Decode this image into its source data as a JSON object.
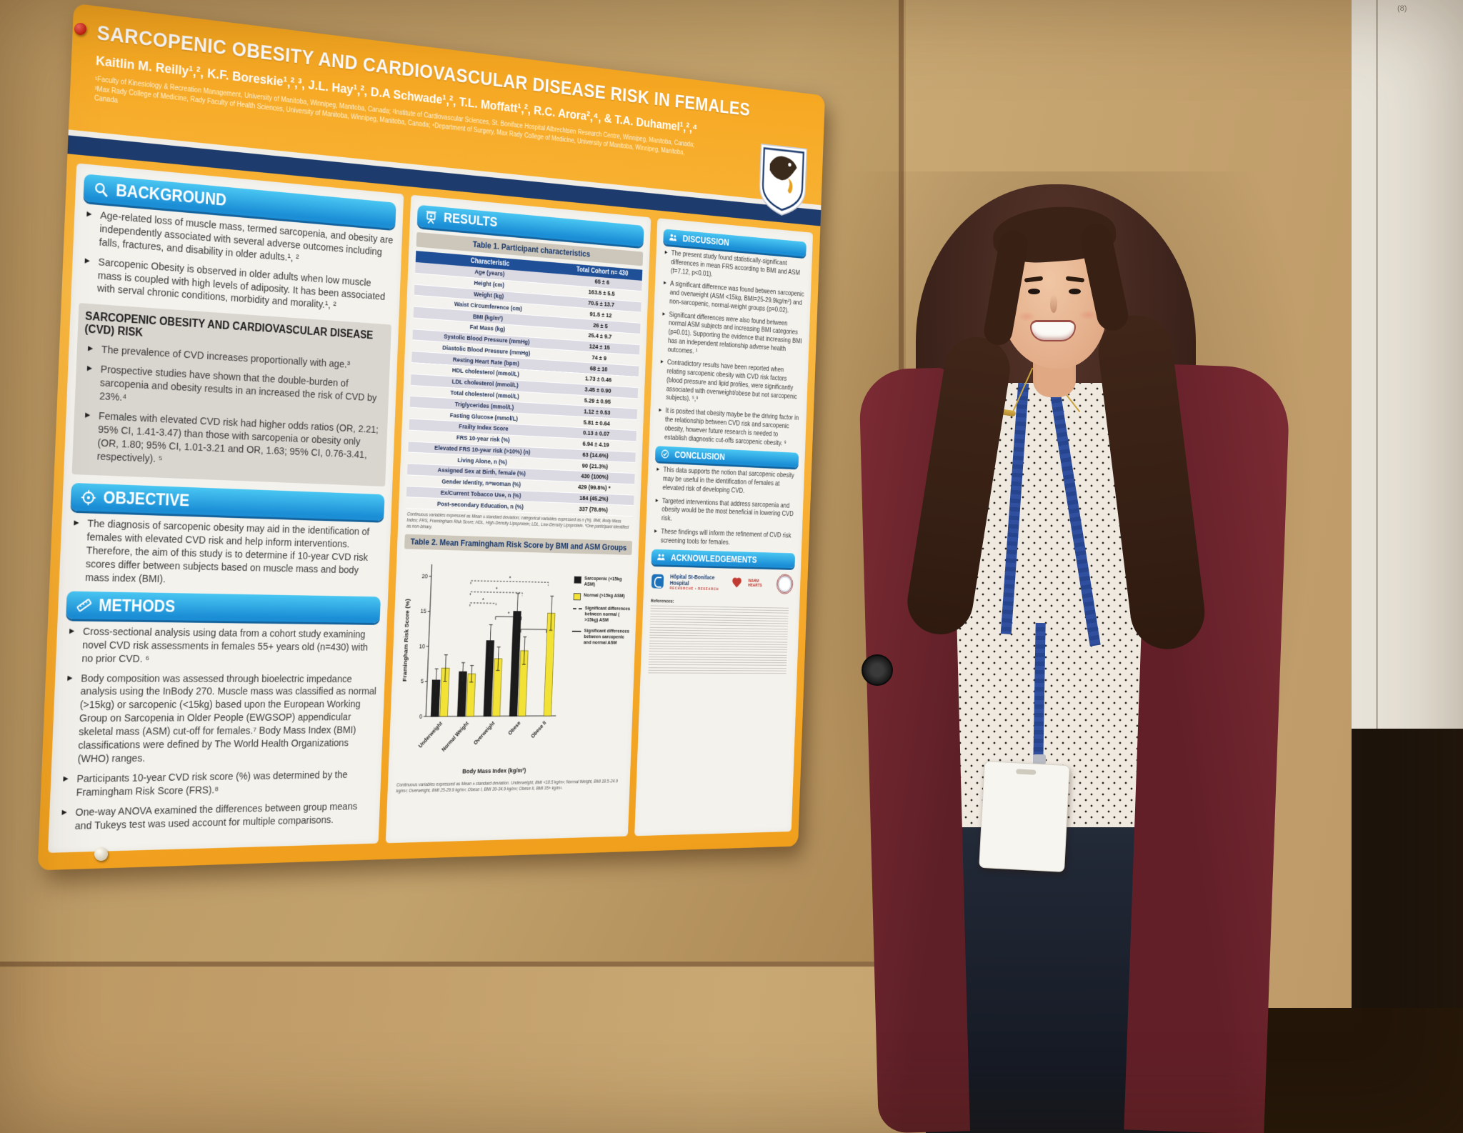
{
  "scene": {
    "whiteboard_note": "(8)"
  },
  "poster": {
    "title": "SARCOPENIC OBESITY AND CARDIOVASCULAR DISEASE RISK IN FEMALES",
    "authors": "Kaitlin M. Reilly¹,², K.F. Boreskie¹,²,³, J.L. Hay¹,², D.A Schwade¹,², T.L. Moffatt¹,², R.C. Arora²,⁴, & T.A. Duhamel¹,²,⁴",
    "affiliations": "¹Faculty of Kinesiology & Recreation Management, University of Manitoba, Winnipeg, Manitoba, Canada; ²Institute of Cardiovascular Sciences, St. Boniface Hospital Albrechtsen Research Centre, Winnipeg, Manitoba, Canada; ³Max Rady College of Medicine, Rady Faculty of Health Sciences, University of Manitoba, Winnipeg, Manitoba, Canada; ⁴Department of Surgery, Max Rady College of Medicine, University of Manitoba, Winnipeg, Manitoba, Canada",
    "background": {
      "label": "BACKGROUND",
      "bullets": [
        "Age-related loss of muscle mass, termed sarcopenia, and obesity are independently associated with several adverse outcomes including falls, fractures, and disability in older adults.¹, ²",
        "Sarcopenic Obesity is observed in older adults when low muscle mass is coupled with high levels of adiposity. It has been associated with serval chronic conditions, morbidity and morality.¹, ²"
      ]
    },
    "cvd_risk_box": {
      "title": "SARCOPENIC OBESITY AND CARDIOVASCULAR DISEASE (CVD) RISK",
      "bullets": [
        "The prevalence of CVD increases proportionally with age.³",
        "Prospective studies have shown that the double-burden of sarcopenia and obesity results in an increased the risk of CVD by 23%.⁴",
        "Females with elevated CVD risk had higher odds ratios (OR, 2.21; 95% CI, 1.41-3.47) than those with sarcopenia or obesity only (OR, 1.80; 95% CI, 1.01-3.21 and OR, 1.63; 95% CI, 0.76-3.41, respectively). ⁵"
      ]
    },
    "objective": {
      "label": "OBJECTIVE",
      "bullets": [
        "The diagnosis of sarcopenic obesity may aid in the identification of females with elevated CVD risk and help inform interventions. Therefore, the aim of this study is to determine if 10-year CVD risk scores differ between subjects based on muscle mass and body mass index (BMI)."
      ]
    },
    "methods": {
      "label": "METHODS",
      "bullets": [
        "Cross-sectional analysis using data from a cohort study examining novel CVD risk assessments in females 55+ years old (n=430) with no prior CVD. ⁶",
        "Body composition was assessed through bioelectric impedance analysis using the InBody 270. Muscle mass was classified as normal (>15kg) or sarcopenic (<15kg) based upon the European Working Group on Sarcopenia in Older People (EWGSOP) appendicular skeletal mass (ASM) cut-off for females.⁷ Body Mass Index (BMI) classifications were defined by The World Health Organizations (WHO) ranges.",
        "Participants 10-year CVD risk score (%) was determined by the Framingham Risk Score (FRS).⁸",
        "One-way ANOVA examined the differences between group means and Tukeys test was used account for multiple comparisons."
      ]
    },
    "results": {
      "label": "RESULTS",
      "table1_title": "Table 1. Participant characteristics",
      "table1": {
        "headers": [
          "Characteristic",
          "Total Cohort n= 430"
        ],
        "rows": [
          [
            "Age (years)",
            "65 ± 6"
          ],
          [
            "Height (cm)",
            "163.5 ± 5.5"
          ],
          [
            "Weight (kg)",
            "70.5 ± 13.7"
          ],
          [
            "Waist Circumference (cm)",
            "91.5 ± 12"
          ],
          [
            "BMI (kg/m²)",
            "26 ± 5"
          ],
          [
            "Fat Mass (kg)",
            "25.4 ± 9.7"
          ],
          [
            "Systolic Blood Pressure (mmHg)",
            "124 ± 15"
          ],
          [
            "Diastolic Blood Pressure (mmHg)",
            "74 ± 9"
          ],
          [
            "Resting Heart Rate (bpm)",
            "68 ± 10"
          ],
          [
            "HDL cholesterol (mmol/L)",
            "1.73 ± 0.46"
          ],
          [
            "LDL cholesterol (mmol/L)",
            "3.45 ± 0.90"
          ],
          [
            "Total cholesterol (mmol/L)",
            "5.29 ± 0.95"
          ],
          [
            "Triglycerides (mmol/L)",
            "1.12 ± 0.53"
          ],
          [
            "Fasting Glucose (mmol/L)",
            "5.81 ± 0.64"
          ],
          [
            "Frailty Index Score",
            "0.13 ± 0.07"
          ],
          [
            "FRS 10-year risk (%)",
            "6.94 ± 4.19"
          ],
          [
            "Elevated FRS 10-year risk (>10%) (n)",
            "63 (14.6%)"
          ],
          [
            "Living Alone, n (%)",
            "90 (21.3%)"
          ],
          [
            "Assigned Sex at Birth, female (%)",
            "430 (100%)"
          ],
          [
            "Gender Identity, n=woman (%)",
            "429 (99.8%) *"
          ],
          [
            "Ex/Current Tobacco Use, n (%)",
            "184 (45.2%)"
          ],
          [
            "Post-secondary Education, n (%)",
            "337 (78.6%)"
          ]
        ]
      },
      "table1_footnote": "Continuous variables expressed as Mean ± standard deviation; categorical variables expressed as n (%). BMI, Body Mass Index; FRS, Framingham Risk Score; HDL, High-Density Lipoprotein; LDL, Low-Density Lipoprotein. *One participant identified as non-binary.",
      "table2_title": "Table 2. Mean Framingham Risk Score by BMI and ASM Groups",
      "chart_footnote": "Continuous variables expressed as Mean ± standard deviation. Underweight, BMI <18.5 kg/m²; Normal Weight, BMI 18.5-24.9 kg/m²; Overweight, BMI 25-29.9 kg/m²; Obese I, BMI 30-34.9 kg/m²; Obese II, BMI 35+ kg/m²."
    },
    "discussion": {
      "label": "DISCUSSION",
      "bullets": [
        "The present study found statistically-significant differences in mean FRS according to BMI and ASM (f=7.12, p<0.01).",
        "A significant difference was found between sarcopenic and overweight (ASM <15kg, BMI=25-29.9kg/m²) and non-sarcopenic, normal-weight groups (p=0.02).",
        "Significant differences were also found between normal ASM subjects and increasing BMI categories (p=0.01). Supporting the evidence that increasing BMI has an independent relationship adverse health outcomes. ¹",
        "Contradictory results have been reported when relating sarcopenic obesity with CVD risk factors (blood pressure and lipid profiles, were significantly associated with overweight/obese but not sarcopenic subjects). ⁵,⁹",
        "It is posited that obesity maybe be the driving factor in the relationship between CVD risk and sarcopenic obesity, however future research is needed to establish diagnostic cut-offs sarcopenic obesity. ⁹"
      ]
    },
    "conclusion": {
      "label": "CONCLUSION",
      "bullets": [
        "This data supports the notion that sarcopenic obesity may be useful in the identification of females at elevated risk of developing CVD.",
        "Targeted interventions that address sarcopenia and obesity would be the most beneficial in lowering CVD risk.",
        "These findings will inform the refinement of CVD risk screening tools for females."
      ]
    },
    "acknowledgements": {
      "label": "ACKNOWLEDGEMENTS",
      "hospital_name": "Hôpital St-Boniface Hospital",
      "hospital_sub": "RECHERCHE • RESEARCH",
      "warm_hearts": "WARM HEARTS",
      "references_label": "References:"
    },
    "accent_colors": {
      "header_orange": "#f6a61e",
      "section_blue": "#1b8ed6",
      "navy": "#1d3b6d",
      "table_header": "#1f4f97"
    }
  },
  "chart_data": {
    "type": "bar",
    "title": "Mean Framingham Risk Score by BMI and ASM Groups",
    "categories": [
      "Underweight",
      "Normal Weight",
      "Overweight",
      "Obese",
      "Obese II"
    ],
    "series": [
      {
        "name": "Sarcopenic (<15kg ASM)",
        "color": "#1b1b1b",
        "values": [
          5.2,
          6.4,
          10.9,
          15.2,
          null
        ],
        "errors": [
          1.6,
          1.3,
          2.3,
          2.6,
          null
        ]
      },
      {
        "name": "Normal (>15kg ASM)",
        "color": "#f2e235",
        "values": [
          6.9,
          6.1,
          8.3,
          9.5,
          15.0
        ],
        "errors": [
          1.9,
          1.2,
          1.7,
          2.0,
          2.5
        ]
      }
    ],
    "sig_lines": [
      {
        "style": "dashed",
        "label": "Significant differences between normal ( >15kg) ASM"
      },
      {
        "style": "solid",
        "label": "Significant differences between sarcopenic and normal ASM"
      }
    ],
    "sig_brackets": [
      {
        "x1": 1,
        "x2": 2,
        "y": 16.3,
        "style": "dashed",
        "label": "*"
      },
      {
        "x1": 1,
        "x2": 3,
        "y": 17.9,
        "style": "dashed",
        "label": "*"
      },
      {
        "x1": 1,
        "x2": 4,
        "y": 19.5,
        "style": "dashed",
        "label": "*"
      },
      {
        "x1": 2,
        "x2": 3,
        "y": 14.4,
        "style": "solid",
        "label": "*"
      },
      {
        "x1": 3,
        "x2": 4,
        "y": 12.6,
        "style": "solid",
        "label": ""
      }
    ],
    "xlabel": "Body Mass Index (kg/m²)",
    "ylabel": "Framingham Risk Score (%)",
    "ylim": [
      0,
      20
    ],
    "yticks": [
      0,
      5,
      10,
      15,
      20
    ],
    "legend_position": "right",
    "grid": false
  }
}
